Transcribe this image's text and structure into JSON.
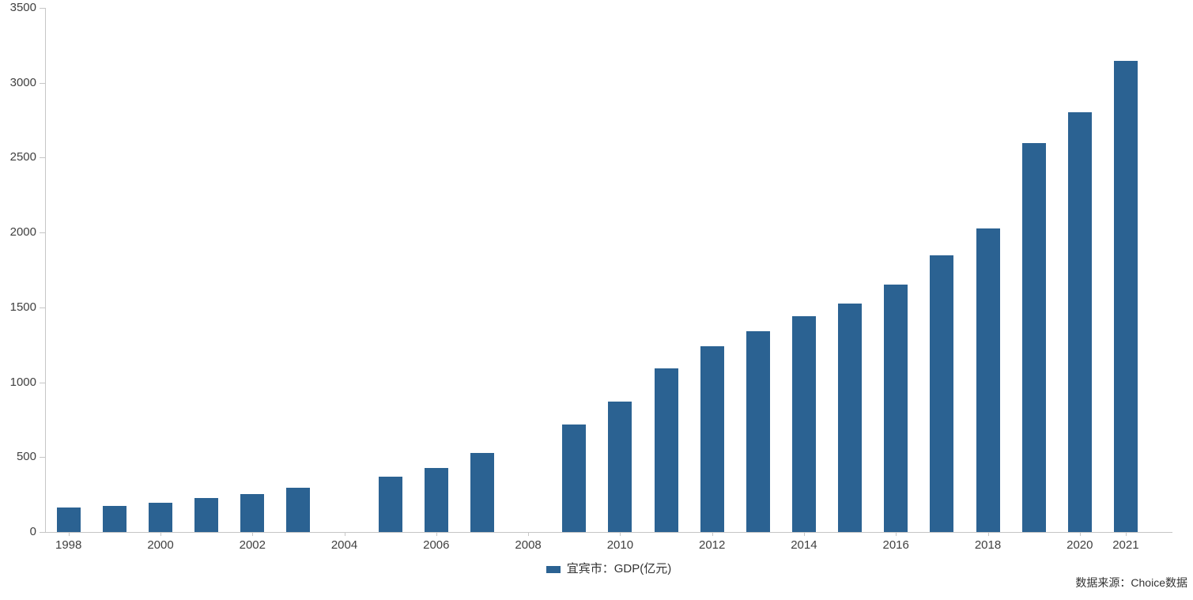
{
  "chart_data": {
    "type": "bar",
    "title": "",
    "series_name": "宜宾市：GDP(亿元)",
    "x": [
      1998,
      1999,
      2000,
      2001,
      2002,
      2003,
      2004,
      2005,
      2006,
      2007,
      2008,
      2009,
      2010,
      2011,
      2012,
      2013,
      2014,
      2015,
      2016,
      2017,
      2018,
      2019,
      2020,
      2021
    ],
    "values": [
      166,
      176,
      196,
      229,
      256,
      294,
      null,
      368,
      430,
      528,
      null,
      720,
      870,
      1091,
      1242,
      1343,
      1444,
      1526,
      1653,
      1846,
      2026,
      2600,
      2801,
      3148
    ],
    "x_tick_labels": [
      "1998",
      "2000",
      "2002",
      "2004",
      "2006",
      "2008",
      "2010",
      "2012",
      "2014",
      "2016",
      "2018",
      "2020",
      "2021"
    ],
    "y_tick_labels": [
      "0",
      "500",
      "1000",
      "1500",
      "2000",
      "2500",
      "3000",
      "3500"
    ],
    "ylim": [
      0,
      3500
    ],
    "xlabel": "",
    "ylabel": "",
    "grid": false,
    "legend_position": "bottom-center"
  },
  "legend": {
    "label": "宜宾市：GDP(亿元)"
  },
  "footer": {
    "source_note": "数据来源：Choice数据"
  },
  "colors": {
    "bar": "#2B6292",
    "axis": "#C6C6C6",
    "text": "#404040"
  }
}
